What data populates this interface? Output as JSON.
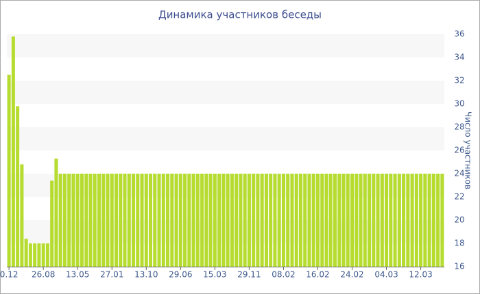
{
  "chart_data": {
    "type": "bar",
    "title": "Динамика участников беседы",
    "y_label": "Число участников",
    "categories": [
      "0.12",
      null,
      null,
      null,
      null,
      null,
      null,
      null,
      "26.08",
      null,
      null,
      null,
      null,
      null,
      null,
      null,
      "13.05",
      null,
      null,
      null,
      null,
      null,
      null,
      null,
      "27.01",
      null,
      null,
      null,
      null,
      null,
      null,
      null,
      "13.10",
      null,
      null,
      null,
      null,
      null,
      null,
      null,
      "29.06",
      null,
      null,
      null,
      null,
      null,
      null,
      null,
      "15.03",
      null,
      null,
      null,
      null,
      null,
      null,
      null,
      "29.11",
      null,
      null,
      null,
      null,
      null,
      null,
      null,
      "08.02",
      null,
      null,
      null,
      null,
      null,
      null,
      null,
      "16.02",
      null,
      null,
      null,
      null,
      null,
      null,
      null,
      "24.02",
      null,
      null,
      null,
      null,
      null,
      null,
      null,
      "04.03",
      null,
      null,
      null,
      null,
      null,
      null,
      null,
      "12.03",
      null,
      null,
      null,
      null,
      null
    ],
    "values": [
      32.5,
      35.8,
      29.8,
      24.8,
      18.4,
      18,
      18,
      18,
      18,
      18,
      23.4,
      25.3,
      24,
      24,
      24,
      24,
      24,
      24,
      24,
      24,
      24,
      24,
      24,
      24,
      24,
      24,
      24,
      24,
      24,
      24,
      24,
      24,
      24,
      24,
      24,
      24,
      24,
      24,
      24,
      24,
      24,
      24,
      24,
      24,
      24,
      24,
      24,
      24,
      24,
      24,
      24,
      24,
      24,
      24,
      24,
      24,
      24,
      24,
      24,
      24,
      24,
      24,
      24,
      24,
      24,
      24,
      24,
      24,
      24,
      24,
      24,
      24,
      24,
      24,
      24,
      24,
      24,
      24,
      24,
      24,
      24,
      24,
      24,
      24,
      24,
      24,
      24,
      24,
      24,
      24,
      24,
      24,
      24,
      24,
      24,
      24,
      24,
      24,
      24,
      24,
      24,
      24
    ],
    "color": "#b5dc2e",
    "ylim": [
      16,
      36
    ],
    "yticks": [
      16,
      18,
      20,
      22,
      24,
      26,
      28,
      30,
      32,
      34,
      36
    ],
    "grid": true,
    "y_axis_side": "right"
  }
}
